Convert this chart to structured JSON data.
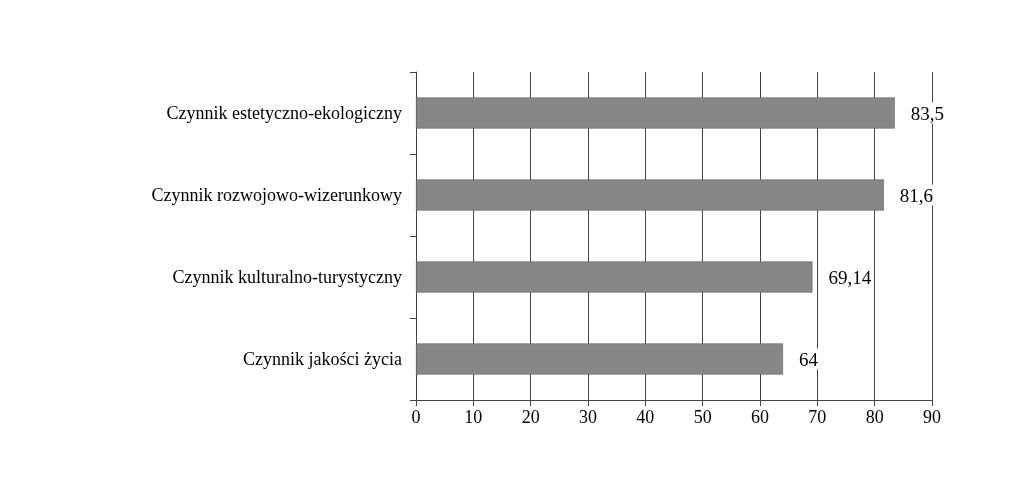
{
  "chart_data": {
    "type": "bar",
    "orientation": "horizontal",
    "categories": [
      "Czynnik estetyczno-ekologiczny",
      "Czynnik rozwojowo-wizerunkowy",
      "Czynnik kulturalno-turystyczny",
      "Czynnik jakości życia"
    ],
    "values": [
      83.5,
      81.6,
      69.14,
      64
    ],
    "value_labels": [
      "83,5",
      "81,6",
      "69,14",
      "64"
    ],
    "color": "#878787",
    "xlim": [
      0,
      90
    ],
    "xticks": [
      0,
      10,
      20,
      30,
      40,
      50,
      60,
      70,
      80,
      90
    ],
    "grid": "x"
  }
}
